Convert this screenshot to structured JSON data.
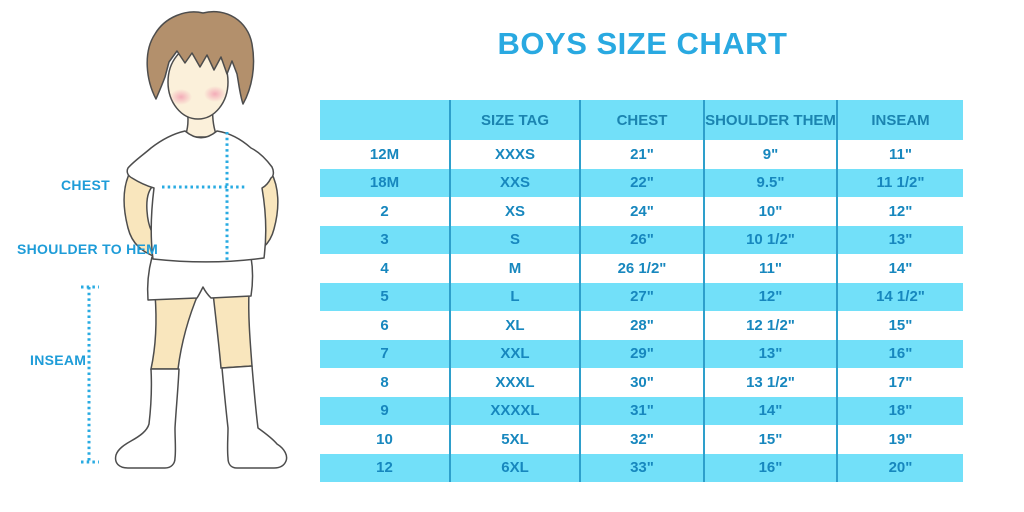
{
  "title": "BOYS SIZE CHART",
  "figure": {
    "labels": {
      "chest": "CHEST",
      "shoulder_to_hem": "SHOULDER TO HEM",
      "inseam": "INSEAM"
    }
  },
  "chart_data": {
    "type": "table",
    "title": "BOYS SIZE CHART",
    "columns": [
      "",
      "SIZE TAG",
      "CHEST",
      "SHOULDER THEM",
      "INSEAM"
    ],
    "rows": [
      [
        "12M",
        "XXXS",
        "21\"",
        "9\"",
        "11\""
      ],
      [
        "18M",
        "XXS",
        "22\"",
        "9.5\"",
        "11 1/2\""
      ],
      [
        "2",
        "XS",
        "24\"",
        "10\"",
        "12\""
      ],
      [
        "3",
        "S",
        "26\"",
        "10 1/2\"",
        "13\""
      ],
      [
        "4",
        "M",
        "26 1/2\"",
        "11\"",
        "14\""
      ],
      [
        "5",
        "L",
        "27\"",
        "12\"",
        "14 1/2\""
      ],
      [
        "6",
        "XL",
        "28\"",
        "12 1/2\"",
        "15\""
      ],
      [
        "7",
        "XXL",
        "29\"",
        "13\"",
        "16\""
      ],
      [
        "8",
        "XXXL",
        "30\"",
        "13 1/2\"",
        "17\""
      ],
      [
        "9",
        "XXXXL",
        "31\"",
        "14\"",
        "18\""
      ],
      [
        "10",
        "5XL",
        "32\"",
        "15\"",
        "19\""
      ],
      [
        "12",
        "6XL",
        "33\"",
        "16\"",
        "20\""
      ]
    ]
  },
  "colors": {
    "accent_blue": "#29A9E1",
    "row_blue": "#72E0F9",
    "divider_blue": "#2E9FCB",
    "table_text": "#1787BE"
  }
}
